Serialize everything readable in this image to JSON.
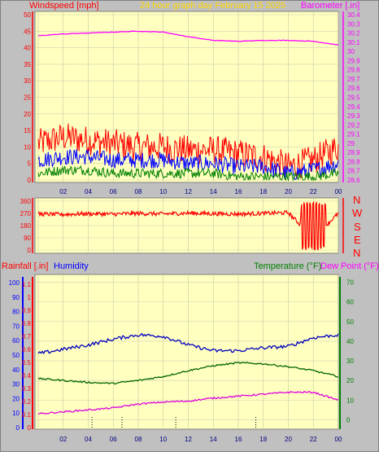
{
  "header": {
    "windspeed_label": "Windspeed [mph]",
    "date_title": "24 hour graph day   February 15 2025",
    "barometer_label": "Barometer [.in]"
  },
  "middle": {
    "wind_dir_letters": [
      "N",
      "W",
      "S",
      "E",
      "N"
    ]
  },
  "bottom_header": {
    "rainfall_label": "Rainfall [.in]",
    "humidity_label": "Humidity",
    "temperature_label": "Temperature (°F)",
    "dewpoint_label": "Dew Point (°F)"
  },
  "colors": {
    "plot_bg": "#ffffc0",
    "wind": "#ff0000",
    "wind_avg": "#0000ff",
    "wind_low": "#008000",
    "barometer": "#ff00ff",
    "direction": "#ff0000",
    "humidity": "#0000c0",
    "temperature": "#006400",
    "dewpoint": "#e000e0",
    "rain_axis": "#ff0000"
  },
  "chart_data": [
    {
      "type": "line",
      "title": "24 hour graph day   February 15 2025",
      "x_tick_labels": [
        "02",
        "04",
        "06",
        "08",
        "10",
        "12",
        "14",
        "16",
        "18",
        "20",
        "22",
        "00"
      ],
      "y_left_label": "Windspeed [mph]",
      "y_left_ticks": [
        "0",
        "5",
        "10",
        "15",
        "20",
        "25",
        "30",
        "35",
        "40",
        "45",
        "50"
      ],
      "ylim_left": [
        0,
        50
      ],
      "y_right_label": "Barometer [.in]",
      "y_right_ticks": [
        "28.6",
        "28.7",
        "28.8",
        "28.9",
        "29",
        "29.1",
        "29.2",
        "29.3",
        "29.4",
        "29.5",
        "29.6",
        "29.7",
        "29.8",
        "29.9",
        "30",
        "30.1",
        "30.2",
        "30.3",
        "30.4"
      ],
      "ylim_right": [
        28.6,
        30.4
      ],
      "x_hours": [
        0,
        2,
        4,
        6,
        8,
        10,
        12,
        14,
        16,
        18,
        20,
        22,
        24
      ],
      "series": [
        {
          "name": "Barometer [.in]",
          "axis": "right",
          "values": [
            30.17,
            30.19,
            30.2,
            30.21,
            30.22,
            30.21,
            30.16,
            30.12,
            30.11,
            30.12,
            30.12,
            30.11,
            30.07
          ]
        },
        {
          "axis": "left",
          "values": [
            11,
            13,
            12,
            11,
            10,
            10,
            9,
            9,
            8,
            7,
            4,
            6,
            10
          ]
        },
        {
          "axis": "left",
          "values": [
            6,
            7,
            7,
            6,
            6,
            6,
            5,
            5,
            4,
            4,
            2,
            3,
            5
          ]
        },
        {
          "axis": "left",
          "values": [
            2,
            3,
            3,
            2,
            2,
            2,
            2,
            2,
            1,
            1,
            1,
            1,
            2
          ]
        }
      ]
    },
    {
      "type": "line",
      "x_tick_labels": [],
      "y_left_ticks": [
        "0",
        "90",
        "180",
        "270",
        "360"
      ],
      "ylim": [
        0,
        360
      ],
      "x_hours": [
        0,
        2,
        4,
        6,
        8,
        10,
        12,
        14,
        16,
        18,
        20,
        22,
        24
      ],
      "series": [
        {
          "values": [
            265,
            262,
            268,
            264,
            270,
            266,
            272,
            268,
            265,
            270,
            275,
            90,
            270
          ]
        }
      ]
    },
    {
      "type": "line",
      "x_tick_labels": [
        "02",
        "04",
        "06",
        "08",
        "10",
        "12",
        "14",
        "16",
        "18",
        "20",
        "22",
        "00"
      ],
      "y_left_label": "Rainfall [.in]",
      "y_left_ticks": [
        "0",
        "0.1",
        "0.2",
        "0.3",
        "0.4",
        "0.5",
        "0.6",
        "0.7",
        "0.8",
        "0.9",
        "1",
        "1.1"
      ],
      "ylim_rain": [
        0,
        1.15
      ],
      "y_humidity_ticks": [
        "0",
        "10",
        "20",
        "30",
        "40",
        "50",
        "60",
        "70",
        "80",
        "90",
        "100"
      ],
      "ylim_humidity": [
        0,
        100
      ],
      "y_right_label": "Temperature (°F)",
      "y_right_ticks": [
        "0",
        "10",
        "20",
        "30",
        "40",
        "50",
        "60",
        "70"
      ],
      "ylim_right": [
        -4,
        74
      ],
      "x_hours": [
        0,
        2,
        4,
        6,
        8,
        10,
        12,
        14,
        16,
        18,
        20,
        22,
        24
      ],
      "series": [
        {
          "name": "Humidity",
          "axis": "humidity",
          "values": [
            51,
            54,
            57,
            61,
            64,
            63,
            57,
            53,
            53,
            55,
            56,
            62,
            64
          ]
        },
        {
          "name": "Temperature (°F)",
          "axis": "right",
          "values": [
            21,
            20,
            19,
            18.5,
            20,
            22,
            25,
            27.5,
            29,
            28.5,
            27,
            25,
            22
          ]
        },
        {
          "name": "Dew Point (°F)",
          "axis": "right",
          "values": [
            3,
            4,
            5,
            6,
            8,
            9,
            9.5,
            11,
            12,
            13,
            14,
            14,
            10
          ]
        }
      ],
      "rain_events_hours": [
        4.3,
        6.7,
        11.0,
        17.4
      ]
    }
  ]
}
